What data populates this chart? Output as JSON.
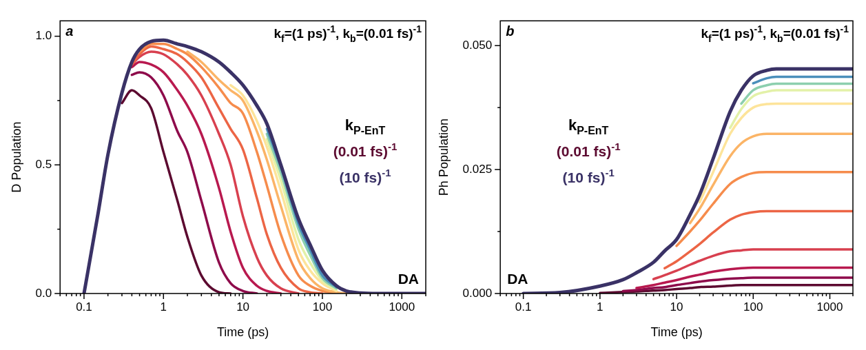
{
  "chart_data": [
    {
      "type": "line",
      "title": "a",
      "subtitle": "k$_{f}$=(1 ps)$^{-1}$, k$_{b}$=(0.01 fs)$^{-1}$",
      "xlabel": "Time (ps)",
      "ylabel": "D Population",
      "legend_title": "k$_{P-EnT}$",
      "legend": "right",
      "log": "x",
      "grid": false,
      "annotations": [
        "DA"
      ],
      "xlim": [
        0.05,
        2000
      ],
      "ylim": [
        0,
        1.06
      ],
      "xticks": [
        {
          "value": 0.05,
          "label": null
        },
        {
          "value": 0.06,
          "label": null
        },
        {
          "value": 0.07,
          "label": null
        },
        {
          "value": 0.08,
          "label": null
        },
        {
          "value": 0.09,
          "label": null
        },
        0.1,
        {
          "value": 0.2,
          "label": null
        },
        {
          "value": 0.3,
          "label": null
        },
        {
          "value": 0.4,
          "label": null
        },
        {
          "value": 0.5,
          "label": null
        },
        {
          "value": 0.6,
          "label": null
        },
        {
          "value": 0.7,
          "label": null
        },
        {
          "value": 0.8,
          "label": null
        },
        {
          "value": 0.9,
          "label": null
        },
        1,
        {
          "value": 2,
          "label": null
        },
        {
          "value": 3,
          "label": null
        },
        {
          "value": 4,
          "label": null
        },
        {
          "value": 5,
          "label": null
        },
        {
          "value": 6,
          "label": null
        },
        {
          "value": 7,
          "label": null
        },
        {
          "value": 8,
          "label": null
        },
        {
          "value": 9,
          "label": null
        },
        10,
        {
          "value": 20,
          "label": null
        },
        {
          "value": 30,
          "label": null
        },
        {
          "value": 40,
          "label": null
        },
        {
          "value": 50,
          "label": null
        },
        {
          "value": 60,
          "label": null
        },
        {
          "value": 70,
          "label": null
        },
        {
          "value": 80,
          "label": null
        },
        {
          "value": 90,
          "label": null
        },
        100,
        {
          "value": 200,
          "label": null
        },
        {
          "value": 300,
          "label": null
        },
        {
          "value": 400,
          "label": null
        },
        {
          "value": 500,
          "label": null
        },
        {
          "value": 600,
          "label": null
        },
        {
          "value": 700,
          "label": null
        },
        {
          "value": 800,
          "label": null
        },
        {
          "value": 900,
          "label": null
        },
        1000,
        {
          "value": 2000,
          "label": null
        }
      ],
      "yticks": [
        {
          "value": 0,
          "label": "0.0"
        },
        {
          "value": 0.25,
          "label": null
        },
        {
          "value": 0.5,
          "label": "0.5"
        },
        {
          "value": 0.75,
          "label": null
        },
        {
          "value": 1,
          "label": "1.0"
        }
      ],
      "x": [
        0.1,
        0.15,
        0.2,
        0.3,
        0.4,
        0.5,
        0.7,
        1,
        1.5,
        2,
        3,
        5,
        7,
        10,
        15,
        20,
        30,
        50,
        70,
        100,
        150,
        200,
        300,
        500,
        1000,
        2000
      ],
      "series": [
        {
          "name": "(0.01 fs)$^{-1}$",
          "color": "#5c0a30",
          "values": [
            null,
            null,
            null,
            0.74,
            0.79,
            0.77,
            0.72,
            0.55,
            0.36,
            0.22,
            0.07,
            0.005,
            0,
            null,
            null,
            null,
            null,
            null,
            null,
            null,
            null,
            null,
            null,
            null,
            null,
            null
          ]
        },
        {
          "color": "#8e0b4b",
          "values": [
            null,
            null,
            null,
            null,
            0.85,
            0.86,
            0.84,
            0.77,
            0.63,
            0.55,
            0.36,
            0.12,
            0.04,
            0.01,
            0,
            null,
            null,
            null,
            null,
            null,
            null,
            null,
            null,
            null,
            null,
            null
          ]
        },
        {
          "color": "#b8194f",
          "values": [
            null,
            null,
            null,
            null,
            0.88,
            0.9,
            0.89,
            0.86,
            0.79,
            0.73,
            0.62,
            0.41,
            0.24,
            0.1,
            0.03,
            0.01,
            0,
            null,
            null,
            null,
            null,
            null,
            null,
            null,
            null,
            null
          ]
        },
        {
          "color": "#d8404f",
          "values": [
            null,
            null,
            null,
            null,
            0.89,
            0.92,
            0.94,
            0.93,
            0.89,
            0.85,
            0.77,
            0.62,
            0.5,
            0.3,
            0.14,
            0.07,
            0.02,
            0,
            null,
            null,
            null,
            null,
            null,
            null,
            null,
            null
          ]
        },
        {
          "color": "#ec6545",
          "values": [
            null,
            null,
            null,
            null,
            0.89,
            0.93,
            0.96,
            0.95,
            0.93,
            0.9,
            0.84,
            0.72,
            0.64,
            0.56,
            0.37,
            0.23,
            0.1,
            0.02,
            0.005,
            0,
            null,
            null,
            null,
            null,
            null,
            null
          ]
        },
        {
          "color": "#f68c4c",
          "values": [
            null,
            null,
            null,
            null,
            null,
            0.94,
            0.97,
            0.97,
            0.95,
            0.93,
            0.88,
            0.8,
            0.74,
            0.7,
            0.55,
            0.42,
            0.23,
            0.07,
            0.03,
            0.01,
            0,
            null,
            null,
            null,
            null,
            null
          ]
        },
        {
          "color": "#fbb466",
          "values": [
            null,
            null,
            null,
            null,
            null,
            null,
            null,
            null,
            null,
            0.94,
            0.9,
            0.83,
            0.79,
            0.75,
            0.63,
            0.52,
            0.34,
            0.13,
            0.06,
            0.02,
            0.005,
            0,
            null,
            null,
            null,
            null
          ]
        },
        {
          "color": "#fde49a",
          "values": [
            null,
            null,
            null,
            null,
            null,
            null,
            null,
            null,
            null,
            null,
            null,
            null,
            0.81,
            0.77,
            0.67,
            0.57,
            0.4,
            0.17,
            0.09,
            0.04,
            0.01,
            null,
            null,
            null,
            null,
            null
          ]
        },
        {
          "color": "#e3f1a8",
          "values": [
            null,
            null,
            null,
            null,
            null,
            null,
            null,
            null,
            null,
            null,
            null,
            null,
            null,
            null,
            null,
            0.6,
            0.44,
            0.21,
            0.12,
            0.05,
            0.015,
            null,
            null,
            null,
            null,
            null
          ]
        },
        {
          "color": "#8ccfae",
          "values": [
            null,
            null,
            null,
            null,
            null,
            null,
            null,
            null,
            null,
            null,
            null,
            null,
            null,
            null,
            null,
            0.62,
            0.47,
            0.25,
            0.15,
            0.06,
            0.02,
            null,
            null,
            null,
            null,
            null
          ]
        },
        {
          "color": "#4a8fbb",
          "values": [
            null,
            null,
            null,
            null,
            null,
            null,
            null,
            null,
            null,
            null,
            null,
            null,
            null,
            null,
            null,
            0.64,
            0.49,
            0.27,
            0.17,
            0.07,
            0.025,
            null,
            null,
            null,
            null,
            null
          ]
        },
        {
          "name": "(10 fs)$^{-1}$",
          "color": "#3a3266",
          "values": [
            0,
            0.31,
            0.54,
            0.78,
            0.9,
            0.95,
            0.98,
            0.985,
            0.97,
            0.96,
            0.94,
            0.9,
            0.86,
            0.81,
            0.73,
            0.66,
            0.5,
            0.29,
            0.19,
            0.09,
            0.03,
            0.01,
            0.002,
            0,
            0,
            0
          ]
        }
      ]
    },
    {
      "type": "line",
      "title": "b",
      "subtitle": "k$_{f}$=(1 ps)$^{-1}$, k$_{b}$=(0.01 fs)$^{-1}$",
      "xlabel": "Time (ps)",
      "ylabel": "Ph Population",
      "legend_title": "k$_{P-EnT}$",
      "legend": "left",
      "log": "x",
      "grid": false,
      "annotations": [
        "DA"
      ],
      "xlim": [
        0.05,
        2000
      ],
      "ylim": [
        0,
        0.055
      ],
      "xticks": [
        {
          "value": 0.05,
          "label": null
        },
        {
          "value": 0.06,
          "label": null
        },
        {
          "value": 0.07,
          "label": null
        },
        {
          "value": 0.08,
          "label": null
        },
        {
          "value": 0.09,
          "label": null
        },
        0.1,
        {
          "value": 0.2,
          "label": null
        },
        {
          "value": 0.3,
          "label": null
        },
        {
          "value": 0.4,
          "label": null
        },
        {
          "value": 0.5,
          "label": null
        },
        {
          "value": 0.6,
          "label": null
        },
        {
          "value": 0.7,
          "label": null
        },
        {
          "value": 0.8,
          "label": null
        },
        {
          "value": 0.9,
          "label": null
        },
        1,
        {
          "value": 2,
          "label": null
        },
        {
          "value": 3,
          "label": null
        },
        {
          "value": 4,
          "label": null
        },
        {
          "value": 5,
          "label": null
        },
        {
          "value": 6,
          "label": null
        },
        {
          "value": 7,
          "label": null
        },
        {
          "value": 8,
          "label": null
        },
        {
          "value": 9,
          "label": null
        },
        10,
        {
          "value": 20,
          "label": null
        },
        {
          "value": 30,
          "label": null
        },
        {
          "value": 40,
          "label": null
        },
        {
          "value": 50,
          "label": null
        },
        {
          "value": 60,
          "label": null
        },
        {
          "value": 70,
          "label": null
        },
        {
          "value": 80,
          "label": null
        },
        {
          "value": 90,
          "label": null
        },
        100,
        {
          "value": 200,
          "label": null
        },
        {
          "value": 300,
          "label": null
        },
        {
          "value": 400,
          "label": null
        },
        {
          "value": 500,
          "label": null
        },
        {
          "value": 600,
          "label": null
        },
        {
          "value": 700,
          "label": null
        },
        {
          "value": 800,
          "label": null
        },
        {
          "value": 900,
          "label": null
        },
        1000,
        {
          "value": 2000,
          "label": null
        }
      ],
      "yticks": [
        {
          "value": 0,
          "label": "0.000"
        },
        {
          "value": 0.0125,
          "label": null
        },
        {
          "value": 0.025,
          "label": "0.025"
        },
        {
          "value": 0.0375,
          "label": null
        },
        {
          "value": 0.05,
          "label": "0.050"
        }
      ],
      "x": [
        0.1,
        0.3,
        1,
        2,
        3,
        5,
        7,
        10,
        15,
        20,
        30,
        50,
        70,
        100,
        150,
        200,
        300,
        500,
        1000,
        2000
      ],
      "series": [
        {
          "name": "(0.01 fs)$^{-1}$",
          "color": "#5c0a30",
          "values": [
            null,
            null,
            0.0001,
            0.0003,
            0.0004,
            0.0006,
            0.0007,
            0.0009,
            0.0011,
            0.0013,
            0.0014,
            0.0016,
            0.0017,
            0.0017,
            0.0017,
            0.0017,
            0.0017,
            0.0017,
            0.0017,
            0.0017
          ]
        },
        {
          "color": "#8e0b4b",
          "values": [
            null,
            null,
            null,
            0.0005,
            0.0007,
            0.0011,
            0.0013,
            0.0017,
            0.0021,
            0.0024,
            0.0027,
            0.003,
            0.0031,
            0.0032,
            0.0032,
            0.0032,
            0.0032,
            0.0032,
            0.0032,
            0.0032
          ]
        },
        {
          "color": "#b8194f",
          "values": [
            null,
            null,
            null,
            null,
            0.0011,
            0.0017,
            0.0022,
            0.0027,
            0.0034,
            0.0038,
            0.0044,
            0.0049,
            0.0051,
            0.0052,
            0.0052,
            0.0052,
            0.0052,
            0.0052,
            0.0052,
            0.0052
          ]
        },
        {
          "color": "#d8404f",
          "values": [
            null,
            null,
            null,
            null,
            null,
            0.0029,
            0.0037,
            0.0046,
            0.0058,
            0.0066,
            0.0076,
            0.0085,
            0.0087,
            0.0089,
            0.0089,
            0.0089,
            0.0089,
            0.0089,
            0.0089,
            0.0089
          ]
        },
        {
          "color": "#ec6545",
          "values": [
            null,
            null,
            null,
            null,
            null,
            null,
            0.0051,
            0.0065,
            0.0085,
            0.01,
            0.0123,
            0.0149,
            0.0159,
            0.0164,
            0.0166,
            0.0166,
            0.0166,
            0.0166,
            0.0166,
            0.0166
          ]
        },
        {
          "color": "#f68c4c",
          "values": [
            null,
            null,
            null,
            null,
            null,
            null,
            null,
            0.0096,
            0.0125,
            0.0147,
            0.0181,
            0.0221,
            0.0235,
            0.0243,
            0.0245,
            0.0245,
            0.0245,
            0.0245,
            0.0245,
            0.0245
          ]
        },
        {
          "color": "#fbb466",
          "values": [
            null,
            null,
            null,
            null,
            null,
            null,
            null,
            null,
            0.0142,
            0.0171,
            0.0219,
            0.0277,
            0.0303,
            0.0317,
            0.0322,
            0.0322,
            0.0322,
            0.0322,
            0.0322,
            0.0322
          ]
        },
        {
          "color": "#fde49a",
          "values": [
            null,
            null,
            null,
            null,
            null,
            null,
            null,
            null,
            null,
            0.0184,
            0.0245,
            0.0322,
            0.0354,
            0.0375,
            0.0382,
            0.0383,
            0.0383,
            0.0383,
            0.0383,
            0.0383
          ]
        },
        {
          "color": "#e3f1a8",
          "values": [
            null,
            null,
            null,
            null,
            null,
            null,
            null,
            null,
            null,
            null,
            null,
            0.0334,
            0.0372,
            0.0398,
            0.0407,
            0.041,
            0.041,
            0.041,
            0.041,
            0.041
          ]
        },
        {
          "color": "#8ccfae",
          "values": [
            null,
            null,
            null,
            null,
            null,
            null,
            null,
            null,
            null,
            null,
            null,
            null,
            0.0383,
            0.041,
            0.042,
            0.0423,
            0.0423,
            0.0423,
            0.0423,
            0.0423
          ]
        },
        {
          "color": "#4a8fbb",
          "values": [
            null,
            null,
            null,
            null,
            null,
            null,
            null,
            null,
            null,
            null,
            null,
            null,
            null,
            0.0424,
            0.0434,
            0.0437,
            0.0437,
            0.0437,
            0.0437,
            0.0437
          ]
        },
        {
          "name": "(10 fs)$^{-1}$",
          "color": "#3a3266",
          "values": [
            0,
            0.0002,
            0.0015,
            0.0028,
            0.0042,
            0.0063,
            0.0086,
            0.0109,
            0.0159,
            0.0199,
            0.0272,
            0.0367,
            0.041,
            0.0439,
            0.045,
            0.0453,
            0.0453,
            0.0453,
            0.0453,
            0.0453
          ]
        }
      ]
    }
  ]
}
